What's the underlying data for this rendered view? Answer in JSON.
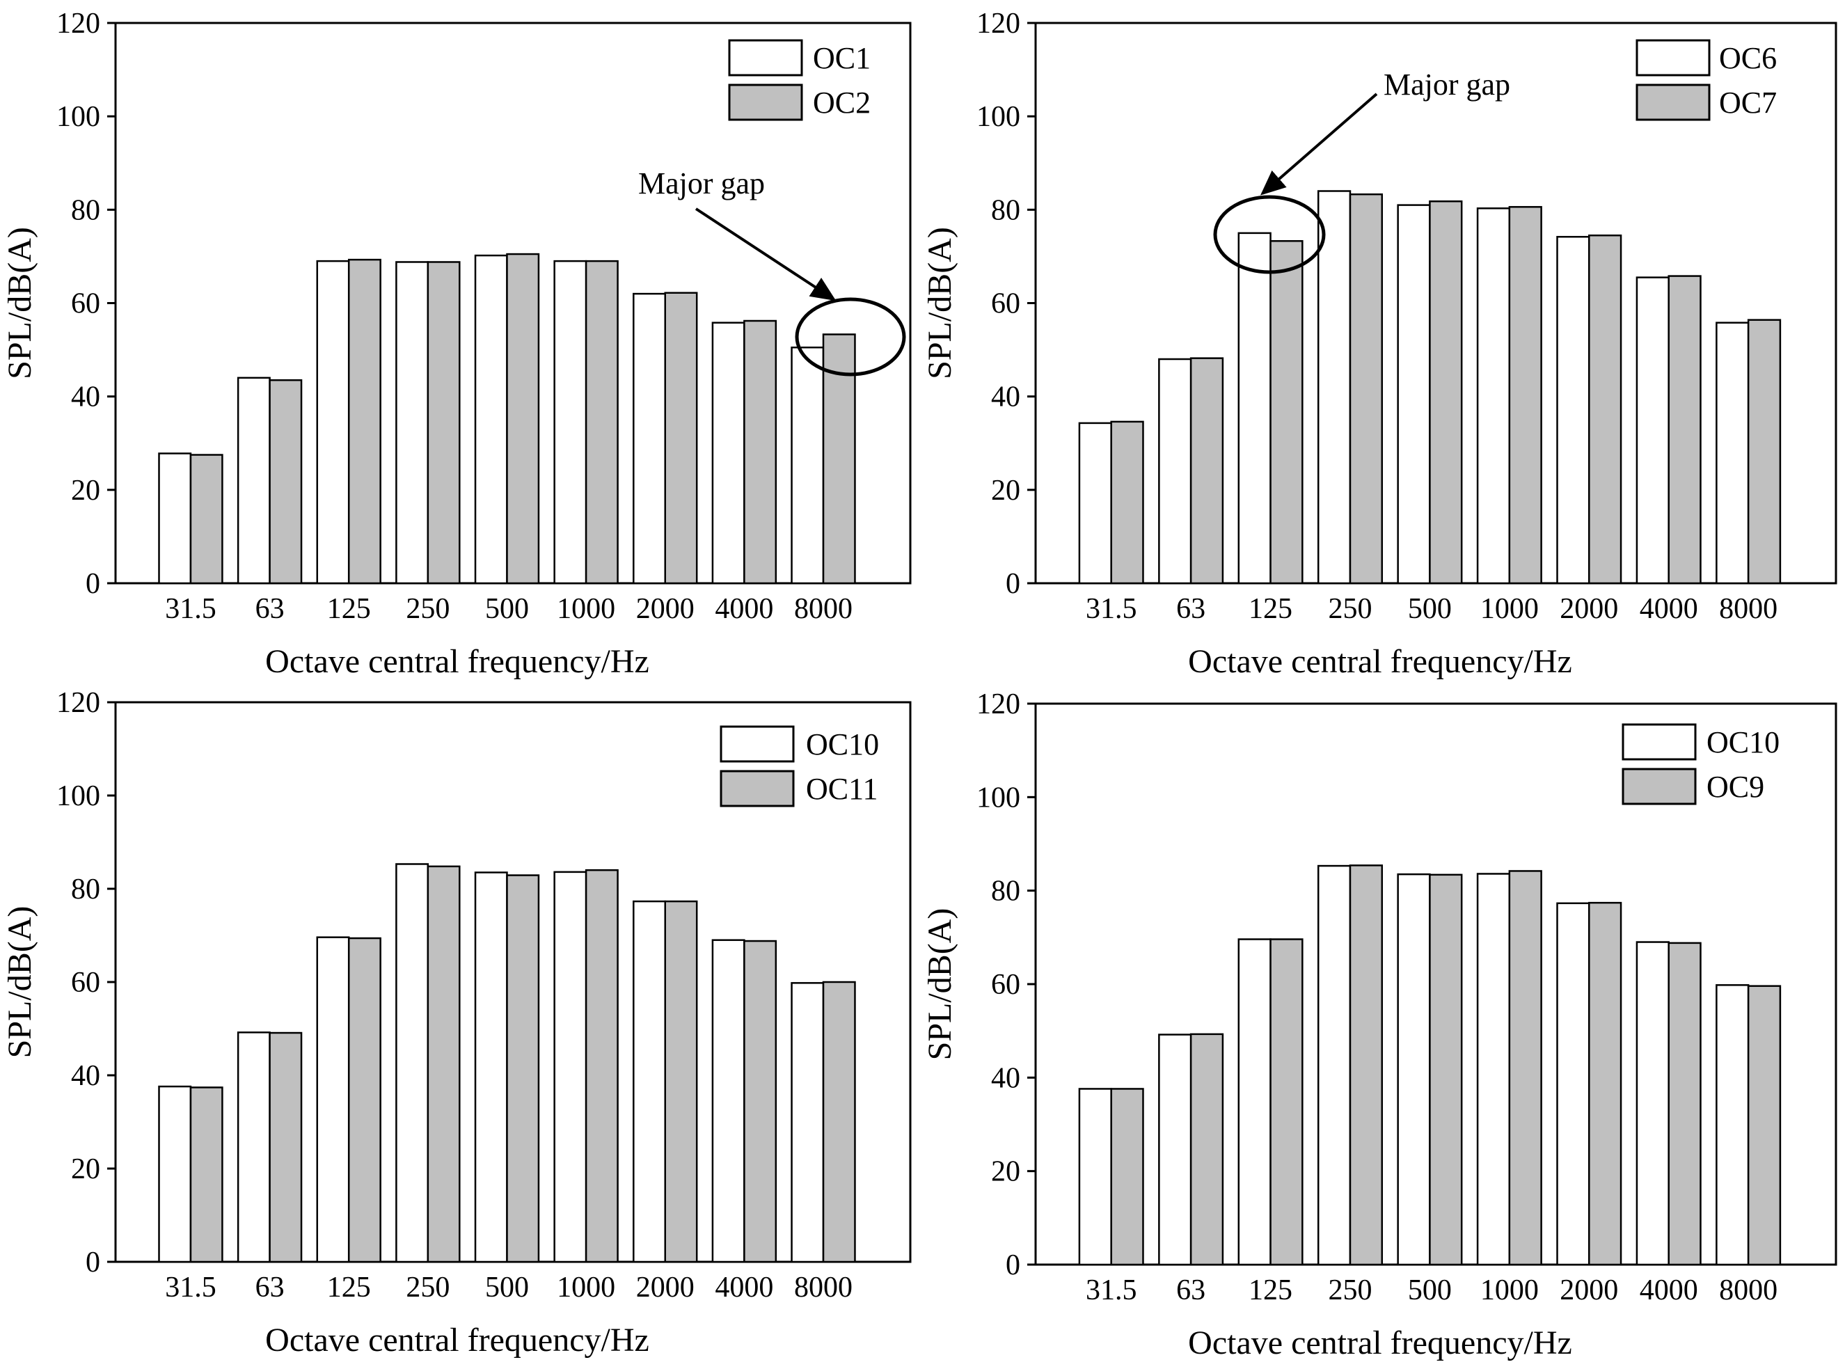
{
  "colors": {
    "series_a": "#ffffff",
    "series_b": "#c0c0c0",
    "stroke": "#000000"
  },
  "chart_data": [
    {
      "type": "bar",
      "categories": [
        "31.5",
        "63",
        "125",
        "250",
        "500",
        "1000",
        "2000",
        "4000",
        "8000"
      ],
      "series": [
        {
          "name": "OC1",
          "values": [
            27.8,
            44,
            69,
            68.8,
            70.2,
            69,
            62,
            55.8,
            50.5
          ]
        },
        {
          "name": "OC2",
          "values": [
            27.5,
            43.5,
            69.3,
            68.8,
            70.5,
            69,
            62.2,
            56.2,
            53.3
          ]
        }
      ],
      "xlabel": "Octave central frequency/Hz",
      "ylabel": "SPL/dB(A)",
      "ylim": [
        0,
        120
      ],
      "yticks": [
        "0",
        "20",
        "40",
        "60",
        "80",
        "100",
        "120"
      ],
      "legend_position": "top-right",
      "annotation": {
        "text": "Major gap",
        "category": "8000"
      }
    },
    {
      "type": "bar",
      "categories": [
        "31.5",
        "63",
        "125",
        "250",
        "500",
        "1000",
        "2000",
        "4000",
        "8000"
      ],
      "series": [
        {
          "name": "OC6",
          "values": [
            34.3,
            48,
            75,
            84,
            81,
            80.3,
            74.2,
            65.5,
            55.8
          ]
        },
        {
          "name": "OC7",
          "values": [
            34.6,
            48.2,
            73.3,
            83.3,
            81.8,
            80.6,
            74.5,
            65.8,
            56.4
          ]
        }
      ],
      "xlabel": "Octave central frequency/Hz",
      "ylabel": "SPL/dB(A)",
      "ylim": [
        0,
        120
      ],
      "yticks": [
        "0",
        "20",
        "40",
        "60",
        "80",
        "100",
        "120"
      ],
      "legend_position": "top-right",
      "annotation": {
        "text": "Major gap",
        "category": "125"
      }
    },
    {
      "type": "bar",
      "categories": [
        "31.5",
        "63",
        "125",
        "250",
        "500",
        "1000",
        "2000",
        "4000",
        "8000"
      ],
      "series": [
        {
          "name": "OC10",
          "values": [
            37.6,
            49.2,
            69.6,
            85.3,
            83.5,
            83.6,
            77.3,
            69,
            59.8
          ]
        },
        {
          "name": "OC11",
          "values": [
            37.4,
            49.1,
            69.4,
            84.8,
            82.9,
            84,
            77.3,
            68.8,
            60
          ]
        }
      ],
      "xlabel": "Octave central frequency/Hz",
      "ylabel": "SPL/dB(A)",
      "ylim": [
        0,
        120
      ],
      "yticks": [
        "0",
        "20",
        "40",
        "60",
        "80",
        "100",
        "120"
      ],
      "legend_position": "top-right"
    },
    {
      "type": "bar",
      "categories": [
        "31.5",
        "63",
        "125",
        "250",
        "500",
        "1000",
        "2000",
        "4000",
        "8000"
      ],
      "series": [
        {
          "name": "OC10",
          "values": [
            37.6,
            49.2,
            69.6,
            85.3,
            83.5,
            83.6,
            77.3,
            69,
            59.8
          ]
        },
        {
          "name": "OC9",
          "values": [
            37.6,
            49.3,
            69.6,
            85.4,
            83.4,
            84.2,
            77.4,
            68.8,
            59.6
          ]
        }
      ],
      "xlabel": "Octave central frequency/Hz",
      "ylabel": "SPL/dB(A)",
      "ylim": [
        0,
        120
      ],
      "yticks": [
        "0",
        "20",
        "40",
        "60",
        "80",
        "100",
        "120"
      ],
      "legend_position": "top-right"
    }
  ]
}
